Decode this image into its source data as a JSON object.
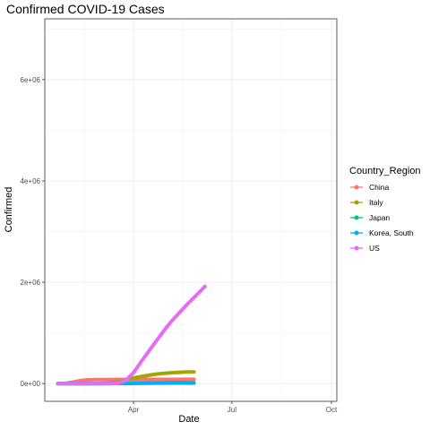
{
  "chart_data": {
    "type": "line",
    "title": "Confirmed COVID-19 Cases",
    "xlabel": "Date",
    "ylabel": "Confirmed",
    "x_type": "date",
    "xlim": [
      "2020-01-10",
      "2020-10-06"
    ],
    "ylim": [
      -350000,
      7200000
    ],
    "x_ticks": [
      {
        "label": "Apr",
        "date": "2020-04-01"
      },
      {
        "label": "Jul",
        "date": "2020-07-01"
      },
      {
        "label": "Oct",
        "date": "2020-10-01"
      }
    ],
    "y_ticks": [
      {
        "label": "0e+00",
        "value": 0
      },
      {
        "label": "2e+06",
        "value": 2000000
      },
      {
        "label": "4e+06",
        "value": 4000000
      },
      {
        "label": "6e+06",
        "value": 6000000
      }
    ],
    "grid": true,
    "legend": {
      "title": "Country_Region",
      "position": "right"
    },
    "series": [
      {
        "name": "China",
        "color": "#F8766D",
        "points": [
          [
            "2020-01-22",
            548
          ],
          [
            "2020-01-29",
            6000
          ],
          [
            "2020-02-05",
            28000
          ],
          [
            "2020-02-12",
            60000
          ],
          [
            "2020-02-19",
            74600
          ],
          [
            "2020-02-26",
            78000
          ],
          [
            "2020-03-04",
            80400
          ],
          [
            "2020-03-11",
            80900
          ],
          [
            "2020-03-18",
            81100
          ],
          [
            "2020-03-25",
            81600
          ],
          [
            "2020-04-01",
            82300
          ],
          [
            "2020-04-08",
            82800
          ],
          [
            "2020-04-15",
            83400
          ],
          [
            "2020-04-22",
            83900
          ],
          [
            "2020-04-29",
            83900
          ],
          [
            "2020-05-06",
            83970
          ],
          [
            "2020-05-13",
            84000
          ],
          [
            "2020-05-20",
            84100
          ],
          [
            "2020-05-27",
            84100
          ]
        ]
      },
      {
        "name": "Italy",
        "color": "#A3A500",
        "points": [
          [
            "2020-01-22",
            0
          ],
          [
            "2020-02-12",
            3
          ],
          [
            "2020-02-26",
            453
          ],
          [
            "2020-03-04",
            3089
          ],
          [
            "2020-03-11",
            12462
          ],
          [
            "2020-03-18",
            35713
          ],
          [
            "2020-03-25",
            74386
          ],
          [
            "2020-04-01",
            110574
          ],
          [
            "2020-04-08",
            139422
          ],
          [
            "2020-04-15",
            165155
          ],
          [
            "2020-04-22",
            187327
          ],
          [
            "2020-04-29",
            203591
          ],
          [
            "2020-05-06",
            214457
          ],
          [
            "2020-05-13",
            222104
          ],
          [
            "2020-05-20",
            227364
          ],
          [
            "2020-05-27",
            231139
          ]
        ]
      },
      {
        "name": "Japan",
        "color": "#00BF7D",
        "points": [
          [
            "2020-01-22",
            2
          ],
          [
            "2020-02-12",
            28
          ],
          [
            "2020-02-26",
            189
          ],
          [
            "2020-03-11",
            639
          ],
          [
            "2020-03-25",
            1307
          ],
          [
            "2020-04-08",
            4667
          ],
          [
            "2020-04-22",
            11512
          ],
          [
            "2020-05-06",
            15253
          ],
          [
            "2020-05-20",
            16424
          ],
          [
            "2020-05-27",
            16683
          ]
        ]
      },
      {
        "name": "Korea, South",
        "color": "#00B0F6",
        "points": [
          [
            "2020-01-22",
            1
          ],
          [
            "2020-02-12",
            28
          ],
          [
            "2020-02-26",
            1261
          ],
          [
            "2020-03-04",
            5621
          ],
          [
            "2020-03-11",
            7755
          ],
          [
            "2020-03-25",
            9137
          ],
          [
            "2020-04-08",
            10384
          ],
          [
            "2020-04-22",
            10694
          ],
          [
            "2020-05-06",
            10806
          ],
          [
            "2020-05-20",
            11110
          ],
          [
            "2020-05-27",
            11265
          ]
        ]
      },
      {
        "name": "US",
        "color": "#E76BF3",
        "points": [
          [
            "2020-01-22",
            1
          ],
          [
            "2020-02-12",
            13
          ],
          [
            "2020-03-04",
            158
          ],
          [
            "2020-03-11",
            1281
          ],
          [
            "2020-03-18",
            9415
          ],
          [
            "2020-03-25",
            65778
          ],
          [
            "2020-04-01",
            213372
          ],
          [
            "2020-04-08",
            429052
          ],
          [
            "2020-04-15",
            636350
          ],
          [
            "2020-04-22",
            839675
          ],
          [
            "2020-04-29",
            1039909
          ],
          [
            "2020-05-06",
            1228603
          ],
          [
            "2020-05-13",
            1390406
          ],
          [
            "2020-05-20",
            1551853
          ],
          [
            "2020-05-27",
            1699933
          ],
          [
            "2020-06-03",
            1851520
          ],
          [
            "2020-06-06",
            1920000
          ]
        ]
      }
    ]
  }
}
